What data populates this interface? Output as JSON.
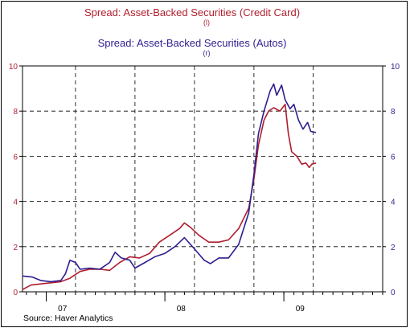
{
  "chart_data": {
    "type": "line",
    "titles": [
      {
        "text": "Spread:  Asset-Backed Securities (Credit Card)",
        "sub": "(l)",
        "color": "#b01e2e"
      },
      {
        "text": "Spread:  Asset-Backed Securities (Autos)",
        "sub": "(r)",
        "color": "#2e1f8f"
      }
    ],
    "source": "Source: Haver Analytics",
    "x_tick_labels": [
      "07",
      "08",
      "09"
    ],
    "xlim": [
      "2006-10-20",
      "2009-11-01"
    ],
    "x_gridlines": [
      "2007-04-01",
      "2007-10-01",
      "2008-04-01",
      "2008-10-01",
      "2009-04-01"
    ],
    "x_major_ticks": [
      "2007-01-01",
      "2008-01-01",
      "2009-01-01"
    ],
    "left_axis": {
      "ylim": [
        0,
        10
      ],
      "ticks": [
        0,
        2,
        4,
        6,
        8,
        10
      ]
    },
    "right_axis": {
      "ylim": [
        0,
        10
      ],
      "ticks": [
        0,
        2,
        4,
        6,
        8,
        10
      ]
    },
    "grid": "dashed",
    "series": [
      {
        "color": "#b01e2e",
        "axis": "left",
        "points": [
          [
            "2006-10-20",
            0.1
          ],
          [
            "2006-11-15",
            0.3
          ],
          [
            "2006-12-15",
            0.35
          ],
          [
            "2007-01-15",
            0.4
          ],
          [
            "2007-02-15",
            0.45
          ],
          [
            "2007-03-15",
            0.6
          ],
          [
            "2007-04-15",
            0.9
          ],
          [
            "2007-05-15",
            1.0
          ],
          [
            "2007-06-15",
            1.0
          ],
          [
            "2007-07-15",
            0.95
          ],
          [
            "2007-08-15",
            1.3
          ],
          [
            "2007-09-15",
            1.55
          ],
          [
            "2007-10-15",
            1.5
          ],
          [
            "2007-11-15",
            1.7
          ],
          [
            "2007-12-15",
            2.2
          ],
          [
            "2008-01-15",
            2.5
          ],
          [
            "2008-02-15",
            2.8
          ],
          [
            "2008-03-01",
            3.05
          ],
          [
            "2008-03-20",
            2.85
          ],
          [
            "2008-04-15",
            2.5
          ],
          [
            "2008-05-15",
            2.2
          ],
          [
            "2008-06-15",
            2.2
          ],
          [
            "2008-07-15",
            2.3
          ],
          [
            "2008-08-15",
            2.8
          ],
          [
            "2008-09-15",
            3.7
          ],
          [
            "2008-10-01",
            5.0
          ],
          [
            "2008-10-15",
            6.5
          ],
          [
            "2008-11-01",
            7.6
          ],
          [
            "2008-11-15",
            8.0
          ],
          [
            "2008-12-01",
            8.15
          ],
          [
            "2008-12-20",
            8.0
          ],
          [
            "2009-01-05",
            8.3
          ],
          [
            "2009-01-15",
            7.0
          ],
          [
            "2009-01-25",
            6.2
          ],
          [
            "2009-02-10",
            6.0
          ],
          [
            "2009-02-25",
            5.65
          ],
          [
            "2009-03-10",
            5.7
          ],
          [
            "2009-03-20",
            5.5
          ],
          [
            "2009-03-28",
            5.65
          ],
          [
            "2009-04-10",
            5.7
          ]
        ]
      },
      {
        "color": "#2e1f8f",
        "axis": "right",
        "points": [
          [
            "2006-10-20",
            0.7
          ],
          [
            "2006-11-20",
            0.65
          ],
          [
            "2006-12-15",
            0.5
          ],
          [
            "2007-01-15",
            0.45
          ],
          [
            "2007-02-15",
            0.5
          ],
          [
            "2007-03-01",
            0.8
          ],
          [
            "2007-03-15",
            1.4
          ],
          [
            "2007-04-01",
            1.3
          ],
          [
            "2007-04-15",
            1.0
          ],
          [
            "2007-05-15",
            1.05
          ],
          [
            "2007-06-15",
            1.0
          ],
          [
            "2007-07-15",
            1.3
          ],
          [
            "2007-08-01",
            1.75
          ],
          [
            "2007-08-20",
            1.5
          ],
          [
            "2007-09-15",
            1.4
          ],
          [
            "2007-10-01",
            1.05
          ],
          [
            "2007-11-01",
            1.3
          ],
          [
            "2007-12-01",
            1.55
          ],
          [
            "2008-01-01",
            1.7
          ],
          [
            "2008-02-01",
            2.0
          ],
          [
            "2008-03-01",
            2.4
          ],
          [
            "2008-04-01",
            1.9
          ],
          [
            "2008-05-01",
            1.4
          ],
          [
            "2008-05-20",
            1.25
          ],
          [
            "2008-06-15",
            1.5
          ],
          [
            "2008-07-15",
            1.5
          ],
          [
            "2008-08-15",
            2.1
          ],
          [
            "2008-09-15",
            3.5
          ],
          [
            "2008-10-01",
            5.2
          ],
          [
            "2008-10-15",
            7.0
          ],
          [
            "2008-11-01",
            8.0
          ],
          [
            "2008-11-20",
            8.9
          ],
          [
            "2008-12-01",
            9.2
          ],
          [
            "2008-12-10",
            8.7
          ],
          [
            "2008-12-25",
            9.15
          ],
          [
            "2009-01-05",
            8.5
          ],
          [
            "2009-01-20",
            8.1
          ],
          [
            "2009-02-01",
            8.3
          ],
          [
            "2009-02-15",
            7.6
          ],
          [
            "2009-03-01",
            7.2
          ],
          [
            "2009-03-15",
            7.5
          ],
          [
            "2009-03-25",
            7.1
          ],
          [
            "2009-04-10",
            7.05
          ]
        ]
      }
    ]
  }
}
